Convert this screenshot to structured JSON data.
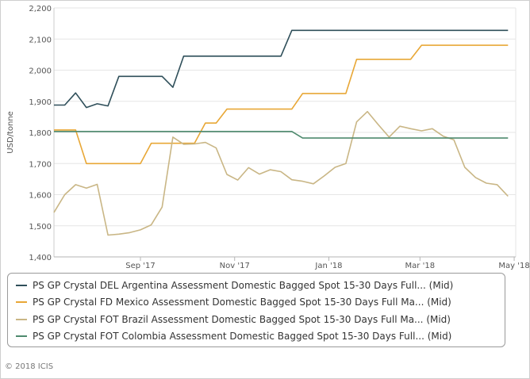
{
  "chart_data": {
    "type": "line",
    "ylabel": "USD/tonne",
    "ylim": [
      1400,
      2200
    ],
    "y_ticks": [
      "1,400",
      "1,500",
      "1,600",
      "1,700",
      "1,800",
      "1,900",
      "2,000",
      "2,100",
      "2,200"
    ],
    "x_range": [
      "2017-07-07",
      "2018-05-02"
    ],
    "x_ticks": [
      {
        "date": "2017-09-01",
        "label": "Sep '17"
      },
      {
        "date": "2017-11-01",
        "label": "Nov '17"
      },
      {
        "date": "2018-01-01",
        "label": "Jan '18"
      },
      {
        "date": "2018-03-01",
        "label": "Mar '18"
      },
      {
        "date": "2018-05-01",
        "label": "May '18"
      }
    ],
    "grid": "horizontal",
    "legend_position": "bottom",
    "series": [
      {
        "name": "PS GP Crystal DEL Argentina Assessment Domestic Bagged Spot 15-30 Days Full... (Mid)",
        "color": "#2f4f5a",
        "points": [
          [
            "2017-07-07",
            1888
          ],
          [
            "2017-07-14",
            1888
          ],
          [
            "2017-07-21",
            1927
          ],
          [
            "2017-07-28",
            1880
          ],
          [
            "2017-08-04",
            1892
          ],
          [
            "2017-08-11",
            1885
          ],
          [
            "2017-08-18",
            1980
          ],
          [
            "2017-08-25",
            1980
          ],
          [
            "2017-09-01",
            1980
          ],
          [
            "2017-09-08",
            1980
          ],
          [
            "2017-09-15",
            1980
          ],
          [
            "2017-09-22",
            1945
          ],
          [
            "2017-09-29",
            2045
          ],
          [
            "2017-10-06",
            2045
          ],
          [
            "2017-10-13",
            2045
          ],
          [
            "2017-10-20",
            2045
          ],
          [
            "2017-10-27",
            2045
          ],
          [
            "2017-11-03",
            2045
          ],
          [
            "2017-11-10",
            2045
          ],
          [
            "2017-11-17",
            2045
          ],
          [
            "2017-11-24",
            2045
          ],
          [
            "2017-12-01",
            2045
          ],
          [
            "2017-12-08",
            2128
          ],
          [
            "2017-12-15",
            2128
          ],
          [
            "2018-01-05",
            2128
          ],
          [
            "2018-02-02",
            2128
          ],
          [
            "2018-03-02",
            2128
          ],
          [
            "2018-04-06",
            2128
          ],
          [
            "2018-04-27",
            2128
          ]
        ]
      },
      {
        "name": "PS GP Crystal FD Mexico Assessment Domestic Bagged Spot 15-30 Days Full Ma... (Mid)",
        "color": "#e8a736",
        "points": [
          [
            "2017-07-07",
            1808
          ],
          [
            "2017-07-21",
            1808
          ],
          [
            "2017-07-28",
            1700
          ],
          [
            "2017-08-04",
            1700
          ],
          [
            "2017-08-11",
            1700
          ],
          [
            "2017-08-18",
            1700
          ],
          [
            "2017-08-25",
            1700
          ],
          [
            "2017-09-01",
            1700
          ],
          [
            "2017-09-08",
            1765
          ],
          [
            "2017-09-15",
            1765
          ],
          [
            "2017-09-22",
            1765
          ],
          [
            "2017-09-29",
            1765
          ],
          [
            "2017-10-06",
            1765
          ],
          [
            "2017-10-13",
            1830
          ],
          [
            "2017-10-20",
            1830
          ],
          [
            "2017-10-27",
            1875
          ],
          [
            "2017-11-03",
            1875
          ],
          [
            "2017-11-10",
            1875
          ],
          [
            "2017-11-17",
            1875
          ],
          [
            "2017-11-24",
            1875
          ],
          [
            "2017-12-01",
            1875
          ],
          [
            "2017-12-08",
            1875
          ],
          [
            "2017-12-15",
            1925
          ],
          [
            "2017-12-22",
            1925
          ],
          [
            "2017-12-29",
            1925
          ],
          [
            "2018-01-05",
            1925
          ],
          [
            "2018-01-12",
            1925
          ],
          [
            "2018-01-19",
            2035
          ],
          [
            "2018-01-26",
            2035
          ],
          [
            "2018-02-02",
            2035
          ],
          [
            "2018-02-09",
            2035
          ],
          [
            "2018-02-16",
            2035
          ],
          [
            "2018-02-23",
            2035
          ],
          [
            "2018-03-02",
            2080
          ],
          [
            "2018-03-16",
            2080
          ],
          [
            "2018-03-30",
            2080
          ],
          [
            "2018-04-13",
            2080
          ],
          [
            "2018-04-27",
            2080
          ]
        ]
      },
      {
        "name": "PS GP Crystal FOT Brazil Assessment Domestic Bagged Spot 15-30 Days Full Ma... (Mid)",
        "color": "#c9b685",
        "points": [
          [
            "2017-07-07",
            1543
          ],
          [
            "2017-07-14",
            1600
          ],
          [
            "2017-07-21",
            1632
          ],
          [
            "2017-07-28",
            1621
          ],
          [
            "2017-08-04",
            1633
          ],
          [
            "2017-08-11",
            1470
          ],
          [
            "2017-08-18",
            1473
          ],
          [
            "2017-08-25",
            1478
          ],
          [
            "2017-09-01",
            1487
          ],
          [
            "2017-09-08",
            1503
          ],
          [
            "2017-09-15",
            1560
          ],
          [
            "2017-09-22",
            1785
          ],
          [
            "2017-09-29",
            1762
          ],
          [
            "2017-10-06",
            1763
          ],
          [
            "2017-10-13",
            1768
          ],
          [
            "2017-10-20",
            1750
          ],
          [
            "2017-10-27",
            1665
          ],
          [
            "2017-11-03",
            1647
          ],
          [
            "2017-11-10",
            1687
          ],
          [
            "2017-11-17",
            1666
          ],
          [
            "2017-11-24",
            1680
          ],
          [
            "2017-12-01",
            1674
          ],
          [
            "2017-12-08",
            1648
          ],
          [
            "2017-12-15",
            1643
          ],
          [
            "2017-12-22",
            1635
          ],
          [
            "2017-12-29",
            1660
          ],
          [
            "2018-01-05",
            1688
          ],
          [
            "2018-01-12",
            1700
          ],
          [
            "2018-01-19",
            1834
          ],
          [
            "2018-01-26",
            1867
          ],
          [
            "2018-02-02",
            1825
          ],
          [
            "2018-02-09",
            1785
          ],
          [
            "2018-02-16",
            1820
          ],
          [
            "2018-02-23",
            1812
          ],
          [
            "2018-03-02",
            1805
          ],
          [
            "2018-03-09",
            1812
          ],
          [
            "2018-03-16",
            1788
          ],
          [
            "2018-03-23",
            1776
          ],
          [
            "2018-03-30",
            1688
          ],
          [
            "2018-04-06",
            1655
          ],
          [
            "2018-04-13",
            1637
          ],
          [
            "2018-04-20",
            1632
          ],
          [
            "2018-04-27",
            1595
          ]
        ]
      },
      {
        "name": "PS GP Crystal FOT Colombia Assessment Domestic Bagged Spot 15-30 Days Full... (Mid)",
        "color": "#4e8a6e",
        "points": [
          [
            "2017-07-07",
            1803
          ],
          [
            "2017-08-04",
            1803
          ],
          [
            "2017-09-01",
            1803
          ],
          [
            "2017-10-06",
            1803
          ],
          [
            "2017-11-03",
            1803
          ],
          [
            "2017-12-08",
            1803
          ],
          [
            "2017-12-15",
            1782
          ],
          [
            "2018-01-05",
            1782
          ],
          [
            "2018-02-02",
            1782
          ],
          [
            "2018-03-02",
            1782
          ],
          [
            "2018-04-06",
            1782
          ],
          [
            "2018-04-27",
            1782
          ]
        ]
      }
    ]
  },
  "copyright": "© 2018 ICIS"
}
